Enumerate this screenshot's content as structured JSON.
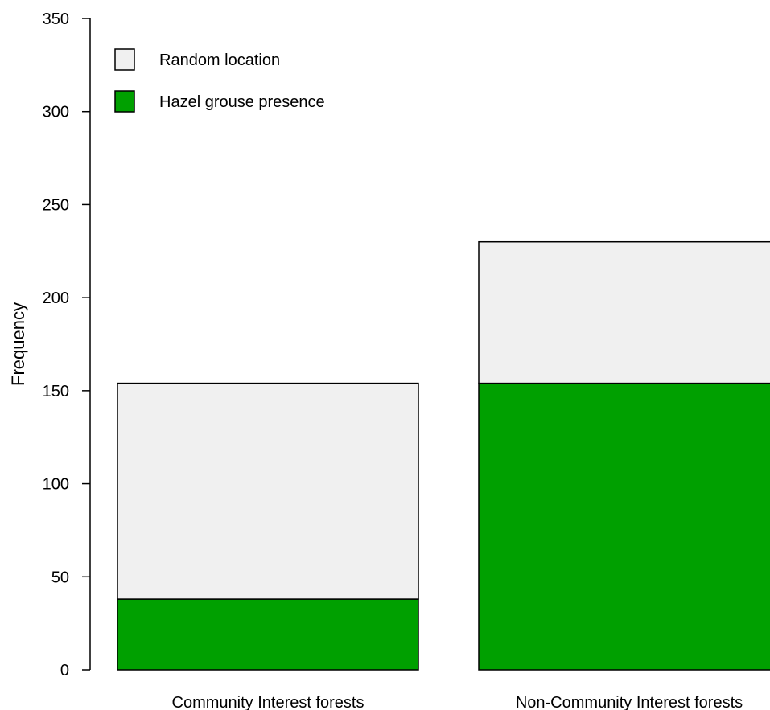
{
  "chart_data": {
    "type": "bar",
    "stacked": true,
    "categories": [
      "Community Interest forests",
      "Non-Community Interest forests"
    ],
    "series": [
      {
        "name": "Hazel grouse presence",
        "values": [
          38,
          154
        ],
        "color": "#00a000"
      },
      {
        "name": "Random location",
        "values": [
          116,
          76
        ],
        "color": "#f0f0f0"
      }
    ],
    "totals": [
      154,
      230
    ],
    "title": "",
    "xlabel": "",
    "ylabel": "Frequency",
    "ylim": [
      0,
      350
    ],
    "yticks": [
      "0",
      "50",
      "100",
      "150",
      "200",
      "250",
      "300",
      "350"
    ],
    "grid": false,
    "legend": {
      "position": "top-left",
      "entries": [
        {
          "label": "Random location",
          "color": "#f0f0f0"
        },
        {
          "label": "Hazel grouse presence",
          "color": "#00a000"
        }
      ]
    }
  }
}
